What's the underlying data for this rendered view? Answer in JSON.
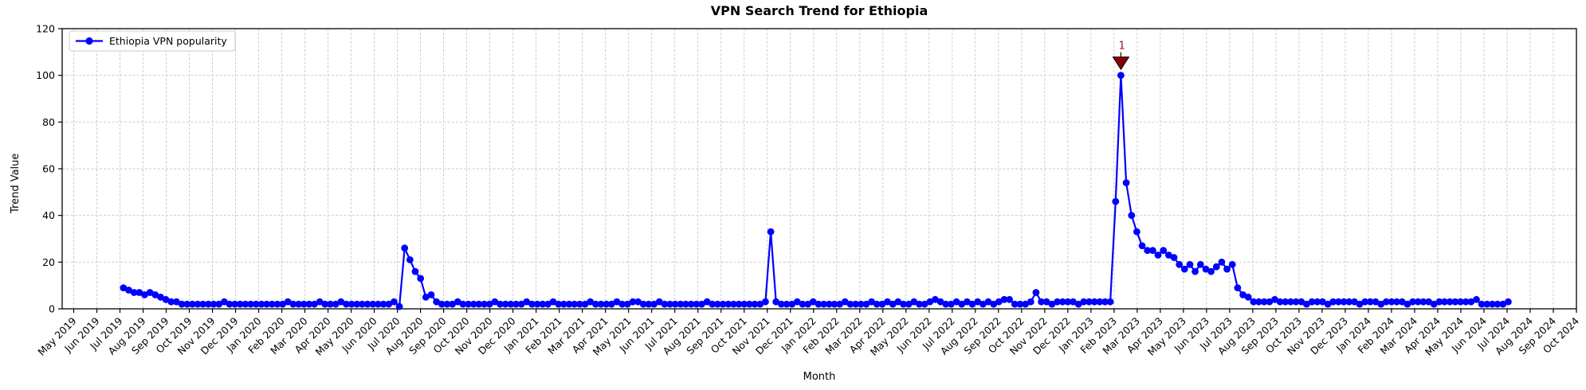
{
  "figure": {
    "title": "VPN Search Trend for Ethiopia",
    "xlabel": "Month",
    "ylabel": "Trend Value"
  },
  "legend": {
    "label": "Ethiopia VPN popularity",
    "position": "upper left"
  },
  "colors": {
    "line": "#0000ff",
    "marker": "#0000ff",
    "grid": "#c7c7c7",
    "axis": "#000000",
    "tick_label": "#000000",
    "legend_border": "#cccccc",
    "legend_fill": "#ffffff",
    "annotation_text": "#8b1a1a",
    "annotation_marker_fill": "#8b0000",
    "annotation_marker_edge": "#000000"
  },
  "chart_data": {
    "type": "line",
    "title": "VPN Search Trend for Ethiopia",
    "xlabel": "Month",
    "ylabel": "Trend Value",
    "ylim": [
      0,
      120
    ],
    "yticks": [
      0,
      20,
      40,
      60,
      80,
      100,
      120
    ],
    "grid": true,
    "legend_position": "upper left",
    "x_tick_labels": [
      "May 2019",
      "Jun 2019",
      "Jul 2019",
      "Aug 2019",
      "Sep 2019",
      "Oct 2019",
      "Nov 2019",
      "Dec 2019",
      "Jan 2020",
      "Feb 2020",
      "Mar 2020",
      "Apr 2020",
      "May 2020",
      "Jun 2020",
      "Jul 2020",
      "Aug 2020",
      "Sep 2020",
      "Oct 2020",
      "Nov 2020",
      "Dec 2020",
      "Jan 2021",
      "Feb 2021",
      "Mar 2021",
      "Apr 2021",
      "May 2021",
      "Jun 2021",
      "Jul 2021",
      "Aug 2021",
      "Sep 2021",
      "Oct 2021",
      "Nov 2021",
      "Dec 2021",
      "Jan 2022",
      "Feb 2022",
      "Mar 2022",
      "Apr 2022",
      "May 2022",
      "Jun 2022",
      "Jul 2022",
      "Aug 2022",
      "Sep 2022",
      "Oct 2022",
      "Nov 2022",
      "Dec 2022",
      "Jan 2023",
      "Feb 2023",
      "Mar 2023",
      "Apr 2023",
      "May 2023",
      "Jun 2023",
      "Jul 2023",
      "Aug 2023",
      "Sep 2023",
      "Oct 2023",
      "Nov 2023",
      "Dec 2023",
      "Jan 2024",
      "Feb 2024",
      "Mar 2024",
      "Apr 2024",
      "May 2024",
      "Jun 2024",
      "Jul 2024",
      "Aug 2024",
      "Sep 2024",
      "Oct 2024"
    ],
    "xlim_month_index": [
      -0.5,
      65.0
    ],
    "series": [
      {
        "name": "Ethiopia VPN popularity",
        "color": "#0000ff",
        "cadence": "weekly",
        "x_start_month_index": 2.15,
        "x_end_month_index": 62.05,
        "values": [
          9,
          8,
          7,
          7,
          6,
          7,
          6,
          5,
          4,
          3,
          3,
          2,
          2,
          2,
          2,
          2,
          2,
          2,
          2,
          3,
          2,
          2,
          2,
          2,
          2,
          2,
          2,
          2,
          2,
          2,
          2,
          3,
          2,
          2,
          2,
          2,
          2,
          3,
          2,
          2,
          2,
          3,
          2,
          2,
          2,
          2,
          2,
          2,
          2,
          2,
          2,
          3,
          1,
          26,
          21,
          16,
          13,
          5,
          6,
          3,
          2,
          2,
          2,
          3,
          2,
          2,
          2,
          2,
          2,
          2,
          3,
          2,
          2,
          2,
          2,
          2,
          3,
          2,
          2,
          2,
          2,
          3,
          2,
          2,
          2,
          2,
          2,
          2,
          3,
          2,
          2,
          2,
          2,
          3,
          2,
          2,
          3,
          3,
          2,
          2,
          2,
          3,
          2,
          2,
          2,
          2,
          2,
          2,
          2,
          2,
          3,
          2,
          2,
          2,
          2,
          2,
          2,
          2,
          2,
          2,
          2,
          3,
          33,
          3,
          2,
          2,
          2,
          3,
          2,
          2,
          3,
          2,
          2,
          2,
          2,
          2,
          3,
          2,
          2,
          2,
          2,
          3,
          2,
          2,
          3,
          2,
          3,
          2,
          2,
          3,
          2,
          2,
          3,
          4,
          3,
          2,
          2,
          3,
          2,
          3,
          2,
          3,
          2,
          3,
          2,
          3,
          4,
          4,
          2,
          2,
          2,
          3,
          7,
          3,
          3,
          2,
          3,
          3,
          3,
          3,
          2,
          3,
          3,
          3,
          3,
          3,
          3,
          46,
          100,
          54,
          40,
          33,
          27,
          25,
          25,
          23,
          25,
          23,
          22,
          19,
          17,
          19,
          16,
          19,
          17,
          16,
          18,
          20,
          17,
          19,
          9,
          6,
          5,
          3,
          3,
          3,
          3,
          4,
          3,
          3,
          3,
          3,
          3,
          2,
          3,
          3,
          3,
          2,
          3,
          3,
          3,
          3,
          3,
          2,
          3,
          3,
          3,
          2,
          3,
          3,
          3,
          3,
          2,
          3,
          3,
          3,
          3,
          2,
          3,
          3,
          3,
          3,
          3,
          3,
          3,
          4,
          2,
          2,
          2,
          2,
          2,
          3
        ]
      }
    ],
    "annotations": [
      {
        "label": "1",
        "at": "series-max",
        "value": 100
      }
    ]
  }
}
